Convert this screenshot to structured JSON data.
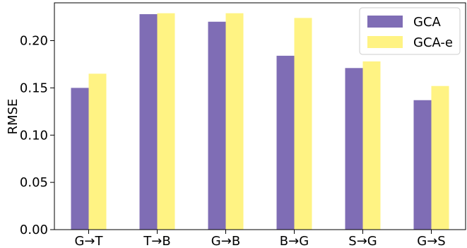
{
  "chart_data": {
    "type": "bar",
    "categories": [
      "G→T",
      "T→B",
      "G→B",
      "B→G",
      "S→G",
      "G→S"
    ],
    "series": [
      {
        "name": "GCA",
        "color": "#7f6db5",
        "values": [
          0.15,
          0.228,
          0.22,
          0.184,
          0.171,
          0.137
        ]
      },
      {
        "name": "GCA-e",
        "color": "#fff383",
        "values": [
          0.165,
          0.229,
          0.229,
          0.224,
          0.178,
          0.152
        ]
      }
    ],
    "title": "",
    "xlabel": "",
    "ylabel": "RMSE",
    "ylim": [
      0,
      0.24
    ],
    "yticks": [
      0.0,
      0.05,
      0.1,
      0.15,
      0.2
    ],
    "ytick_labels": [
      "0.00",
      "0.05",
      "0.10",
      "0.15",
      "0.20"
    ],
    "grid": false,
    "legend_position": "top-right"
  }
}
